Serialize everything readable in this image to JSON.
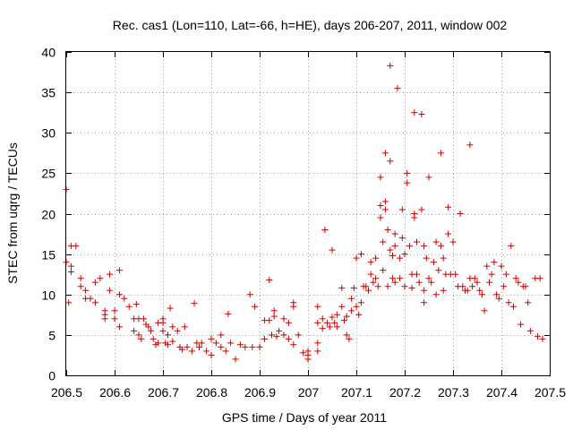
{
  "colors": {
    "points": "#cc0000",
    "axis": "#000000",
    "grid": "#a0a0a0"
  },
  "chart_data": {
    "type": "scatter",
    "title": "Rec. cas1 (Lon=110, Lat=-66, h=HE), days 206-207, 2011, window 002",
    "xlabel": "GPS time / Days of year 2011",
    "ylabel": "STEC from uqrg / TECUs",
    "xlim": [
      206.5,
      207.5
    ],
    "ylim": [
      0,
      40
    ],
    "grid": true,
    "x_ticks": [
      206.5,
      206.6,
      206.7,
      206.8,
      206.9,
      207,
      207.1,
      207.2,
      207.3,
      207.4,
      207.5
    ],
    "x_tick_labels": [
      "206.5",
      "206.6",
      "206.7",
      "206.8",
      "206.9",
      "207",
      "207.1",
      "207.2",
      "207.3",
      "207.4",
      "207.5"
    ],
    "y_ticks": [
      0,
      5,
      10,
      15,
      20,
      25,
      30,
      35,
      40
    ],
    "y_tick_labels": [
      "0",
      "5",
      "10",
      "15",
      "20",
      "25",
      "30",
      "35",
      "40"
    ],
    "series": [
      {
        "name": "STEC",
        "marker": "+",
        "points": [
          [
            206.5,
            23.0
          ],
          [
            206.5,
            14.0
          ],
          [
            206.505,
            9.0
          ],
          [
            206.51,
            13.5
          ],
          [
            206.51,
            12.8
          ],
          [
            206.51,
            16.0
          ],
          [
            206.52,
            16.0
          ],
          [
            206.53,
            12.0
          ],
          [
            206.53,
            11.0
          ],
          [
            206.54,
            10.5
          ],
          [
            206.54,
            9.5
          ],
          [
            206.55,
            9.5
          ],
          [
            206.56,
            11.5
          ],
          [
            206.56,
            9.0
          ],
          [
            206.57,
            12.0
          ],
          [
            206.58,
            8.0
          ],
          [
            206.58,
            7.0
          ],
          [
            206.58,
            7.5
          ],
          [
            206.59,
            12.5
          ],
          [
            206.59,
            10.5
          ],
          [
            206.6,
            8.0
          ],
          [
            206.6,
            7.0
          ],
          [
            206.61,
            13.0
          ],
          [
            206.61,
            10.0
          ],
          [
            206.61,
            6.0
          ],
          [
            206.62,
            9.5
          ],
          [
            206.63,
            8.5
          ],
          [
            206.64,
            7.0
          ],
          [
            206.64,
            5.5
          ],
          [
            206.645,
            8.8
          ],
          [
            206.65,
            7.0
          ],
          [
            206.65,
            5.0
          ],
          [
            206.655,
            4.5
          ],
          [
            206.66,
            7.0
          ],
          [
            206.665,
            6.3
          ],
          [
            206.67,
            6.0
          ],
          [
            206.675,
            5.5
          ],
          [
            206.68,
            4.5
          ],
          [
            206.685,
            3.8
          ],
          [
            206.69,
            6.5
          ],
          [
            206.69,
            4.0
          ],
          [
            206.7,
            7.0
          ],
          [
            206.7,
            6.5
          ],
          [
            206.7,
            5.5
          ],
          [
            206.705,
            4.0
          ],
          [
            206.71,
            5.0
          ],
          [
            206.71,
            3.8
          ],
          [
            206.715,
            8.3
          ],
          [
            206.72,
            6.0
          ],
          [
            206.72,
            4.2
          ],
          [
            206.73,
            5.5
          ],
          [
            206.735,
            3.5
          ],
          [
            206.74,
            3.2
          ],
          [
            206.745,
            6.0
          ],
          [
            206.75,
            3.5
          ],
          [
            206.76,
            3.0
          ],
          [
            206.765,
            8.9
          ],
          [
            206.77,
            4.0
          ],
          [
            206.775,
            3.5
          ],
          [
            206.78,
            4.0
          ],
          [
            206.79,
            3.0
          ],
          [
            206.8,
            4.5
          ],
          [
            206.8,
            2.5
          ],
          [
            206.81,
            4.0
          ],
          [
            206.82,
            5.0
          ],
          [
            206.82,
            3.5
          ],
          [
            206.83,
            3.0
          ],
          [
            206.835,
            7.6
          ],
          [
            206.84,
            4.0
          ],
          [
            206.85,
            2.0
          ],
          [
            206.86,
            3.8
          ],
          [
            206.87,
            3.5
          ],
          [
            206.88,
            10.0
          ],
          [
            206.885,
            3.5
          ],
          [
            206.89,
            8.5
          ],
          [
            206.9,
            3.5
          ],
          [
            206.91,
            6.8
          ],
          [
            206.91,
            4.5
          ],
          [
            206.92,
            11.8
          ],
          [
            206.92,
            6.8
          ],
          [
            206.925,
            5.0
          ],
          [
            206.93,
            8.0
          ],
          [
            206.93,
            7.3
          ],
          [
            206.935,
            4.8
          ],
          [
            206.94,
            5.5
          ],
          [
            206.95,
            7.0
          ],
          [
            206.95,
            5.0
          ],
          [
            206.96,
            6.5
          ],
          [
            206.96,
            4.5
          ],
          [
            206.97,
            9.0
          ],
          [
            206.97,
            8.5
          ],
          [
            206.97,
            3.8
          ],
          [
            206.98,
            5.0
          ],
          [
            206.99,
            2.8
          ],
          [
            207.0,
            3.0
          ],
          [
            207.0,
            2.0
          ],
          [
            207.0,
            2.5
          ],
          [
            207.02,
            8.5
          ],
          [
            207.02,
            6.5
          ],
          [
            207.02,
            4.0
          ],
          [
            207.02,
            3.0
          ],
          [
            207.03,
            7.0
          ],
          [
            207.03,
            5.8
          ],
          [
            207.035,
            18.0
          ],
          [
            207.04,
            6.5
          ],
          [
            207.045,
            6.0
          ],
          [
            207.05,
            15.5
          ],
          [
            207.05,
            7.2
          ],
          [
            207.055,
            6.5
          ],
          [
            207.06,
            7.5
          ],
          [
            207.06,
            6.0
          ],
          [
            207.07,
            10.8
          ],
          [
            207.07,
            8.5
          ],
          [
            207.075,
            6.8
          ],
          [
            207.08,
            7.3
          ],
          [
            207.08,
            5.0
          ],
          [
            207.085,
            4.5
          ],
          [
            207.09,
            9.5
          ],
          [
            207.09,
            8.0
          ],
          [
            207.095,
            10.8
          ],
          [
            207.1,
            14.5
          ],
          [
            207.1,
            8.5
          ],
          [
            207.105,
            7.5
          ],
          [
            207.11,
            15.0
          ],
          [
            207.11,
            9.0
          ],
          [
            207.115,
            11.0
          ],
          [
            207.12,
            11.0
          ],
          [
            207.125,
            10.5
          ],
          [
            207.13,
            14.0
          ],
          [
            207.13,
            12.5
          ],
          [
            207.135,
            11.5
          ],
          [
            207.14,
            14.5
          ],
          [
            207.14,
            12.0
          ],
          [
            207.145,
            11.0
          ],
          [
            207.15,
            24.5
          ],
          [
            207.15,
            21.0
          ],
          [
            207.15,
            19.5
          ],
          [
            207.155,
            16.5
          ],
          [
            207.155,
            13.0
          ],
          [
            207.16,
            27.5
          ],
          [
            207.16,
            21.5
          ],
          [
            207.16,
            20.5
          ],
          [
            207.165,
            18.0
          ],
          [
            207.165,
            11.0
          ],
          [
            207.17,
            38.3
          ],
          [
            207.17,
            26.5
          ],
          [
            207.17,
            15.5
          ],
          [
            207.175,
            14.8
          ],
          [
            207.175,
            12.0
          ],
          [
            207.18,
            17.5
          ],
          [
            207.18,
            16.0
          ],
          [
            207.18,
            11.5
          ],
          [
            207.185,
            35.5
          ],
          [
            207.19,
            14.5
          ],
          [
            207.19,
            12.0
          ],
          [
            207.195,
            20.5
          ],
          [
            207.195,
            17.0
          ],
          [
            207.2,
            15.0
          ],
          [
            207.2,
            11.0
          ],
          [
            207.205,
            25.0
          ],
          [
            207.205,
            23.8
          ],
          [
            207.21,
            16.0
          ],
          [
            207.215,
            12.5
          ],
          [
            207.215,
            10.8
          ],
          [
            207.22,
            32.5
          ],
          [
            207.22,
            20.0
          ],
          [
            207.22,
            19.5
          ],
          [
            207.225,
            16.5
          ],
          [
            207.225,
            12.5
          ],
          [
            207.23,
            11.5
          ],
          [
            207.235,
            32.3
          ],
          [
            207.235,
            20.5
          ],
          [
            207.24,
            16.0
          ],
          [
            207.24,
            10.5
          ],
          [
            207.24,
            9.0
          ],
          [
            207.245,
            14.5
          ],
          [
            207.25,
            24.5
          ],
          [
            207.25,
            12.0
          ],
          [
            207.255,
            11.5
          ],
          [
            207.26,
            14.0
          ],
          [
            207.265,
            16.5
          ],
          [
            207.265,
            10.0
          ],
          [
            207.27,
            13.0
          ],
          [
            207.275,
            27.5
          ],
          [
            207.275,
            16.0
          ],
          [
            207.28,
            14.5
          ],
          [
            207.28,
            10.5
          ],
          [
            207.285,
            12.5
          ],
          [
            207.29,
            20.8
          ],
          [
            207.29,
            17.5
          ],
          [
            207.295,
            12.5
          ],
          [
            207.3,
            16.5
          ],
          [
            207.305,
            12.5
          ],
          [
            207.31,
            11.0
          ],
          [
            207.315,
            20.0
          ],
          [
            207.32,
            11.0
          ],
          [
            207.325,
            10.5
          ],
          [
            207.33,
            10.5
          ],
          [
            207.335,
            28.5
          ],
          [
            207.335,
            12.0
          ],
          [
            207.34,
            11.0
          ],
          [
            207.345,
            12.0
          ],
          [
            207.35,
            11.5
          ],
          [
            207.355,
            10.5
          ],
          [
            207.36,
            10.0
          ],
          [
            207.365,
            8.0
          ],
          [
            207.37,
            13.5
          ],
          [
            207.375,
            11.5
          ],
          [
            207.38,
            12.5
          ],
          [
            207.385,
            14.0
          ],
          [
            207.39,
            10.0
          ],
          [
            207.395,
            9.5
          ],
          [
            207.4,
            13.5
          ],
          [
            207.405,
            11.0
          ],
          [
            207.41,
            12.5
          ],
          [
            207.415,
            9.0
          ],
          [
            207.42,
            16.0
          ],
          [
            207.425,
            8.5
          ],
          [
            207.43,
            12.0
          ],
          [
            207.435,
            11.5
          ],
          [
            207.44,
            6.3
          ],
          [
            207.445,
            11.0
          ],
          [
            207.45,
            11.0
          ],
          [
            207.455,
            9.0
          ],
          [
            207.46,
            5.5
          ],
          [
            207.47,
            12.0
          ],
          [
            207.475,
            4.8
          ],
          [
            207.48,
            12.0
          ],
          [
            207.485,
            4.5
          ]
        ]
      }
    ]
  }
}
